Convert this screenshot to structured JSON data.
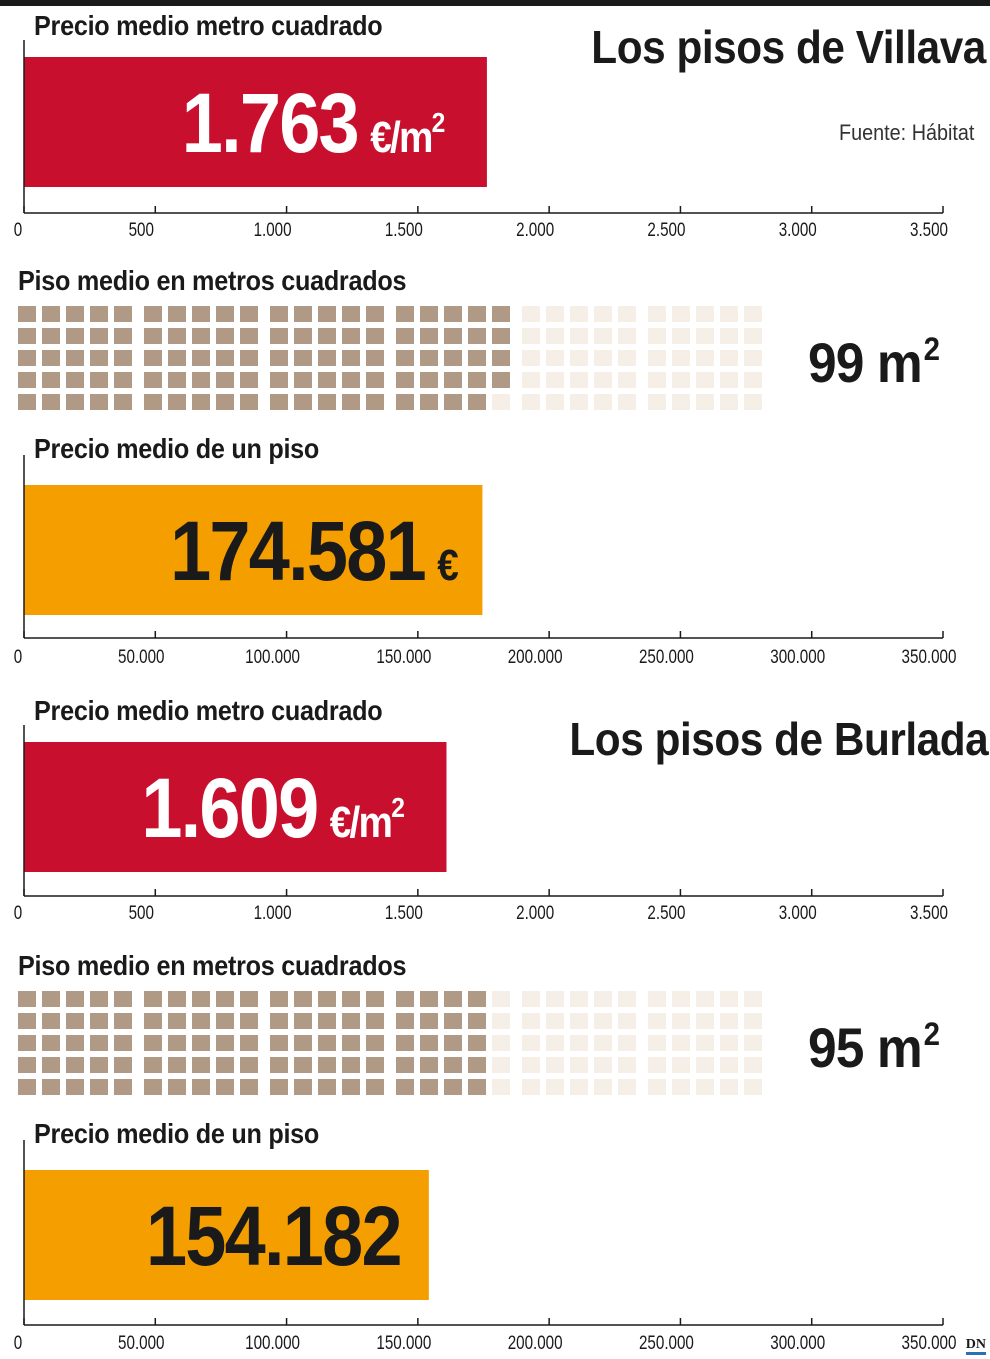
{
  "colors": {
    "red": "#c8102e",
    "orange": "#f59e00",
    "waffle_on": "#b09a86",
    "waffle_off": "#f5efe7",
    "ink": "#1a1a1a"
  },
  "source": "Fuente: Hábitat",
  "logo": "DN",
  "chart_data": [
    {
      "type": "bar",
      "town": "Villava",
      "heading": "Los pisos de Villava",
      "title": "Precio medio metro cuadrado",
      "value": 1763,
      "value_label": "1.763",
      "unit": "€/m",
      "unit_sup": "2",
      "xlim": [
        0,
        3500
      ],
      "ticks": [
        "0",
        "500",
        "1.000",
        "1.500",
        "2.000",
        "2.500",
        "3.000",
        "3.500"
      ],
      "tick_values": [
        0,
        500,
        1000,
        1500,
        2000,
        2500,
        3000,
        3500
      ]
    },
    {
      "type": "waffle",
      "town": "Villava",
      "title": "Piso medio en metros cuadrados",
      "value": 99,
      "total": 150,
      "value_label": "99 m",
      "unit_sup": "2"
    },
    {
      "type": "bar",
      "town": "Villava",
      "title": "Precio medio de un piso",
      "value": 174581,
      "value_label": "174.581",
      "unit": "€",
      "unit_sup": "",
      "xlim": [
        0,
        350000
      ],
      "ticks": [
        "0",
        "50.000",
        "100.000",
        "150.000",
        "200.000",
        "250.000",
        "300.000",
        "350.000"
      ],
      "tick_values": [
        0,
        50000,
        100000,
        150000,
        200000,
        250000,
        300000,
        350000
      ]
    },
    {
      "type": "bar",
      "town": "Burlada",
      "heading": "Los pisos de Burlada",
      "title": "Precio medio metro cuadrado",
      "value": 1609,
      "value_label": "1.609",
      "unit": "€/m",
      "unit_sup": "2",
      "xlim": [
        0,
        3500
      ],
      "ticks": [
        "0",
        "500",
        "1.000",
        "1.500",
        "2.000",
        "2.500",
        "3.000",
        "3.500"
      ],
      "tick_values": [
        0,
        500,
        1000,
        1500,
        2000,
        2500,
        3000,
        3500
      ]
    },
    {
      "type": "waffle",
      "town": "Burlada",
      "title": "Piso medio en metros cuadrados",
      "value": 95,
      "total": 150,
      "value_label": "95 m",
      "unit_sup": "2"
    },
    {
      "type": "bar",
      "town": "Burlada",
      "title": "Precio medio de un piso",
      "value": 154182,
      "value_label": "154.182",
      "unit": "",
      "unit_sup": "",
      "xlim": [
        0,
        350000
      ],
      "ticks": [
        "0",
        "50.000",
        "100.000",
        "150.000",
        "200.000",
        "250.000",
        "300.000",
        "350.000"
      ],
      "tick_values": [
        0,
        50000,
        100000,
        150000,
        200000,
        250000,
        300000,
        350000
      ]
    }
  ]
}
